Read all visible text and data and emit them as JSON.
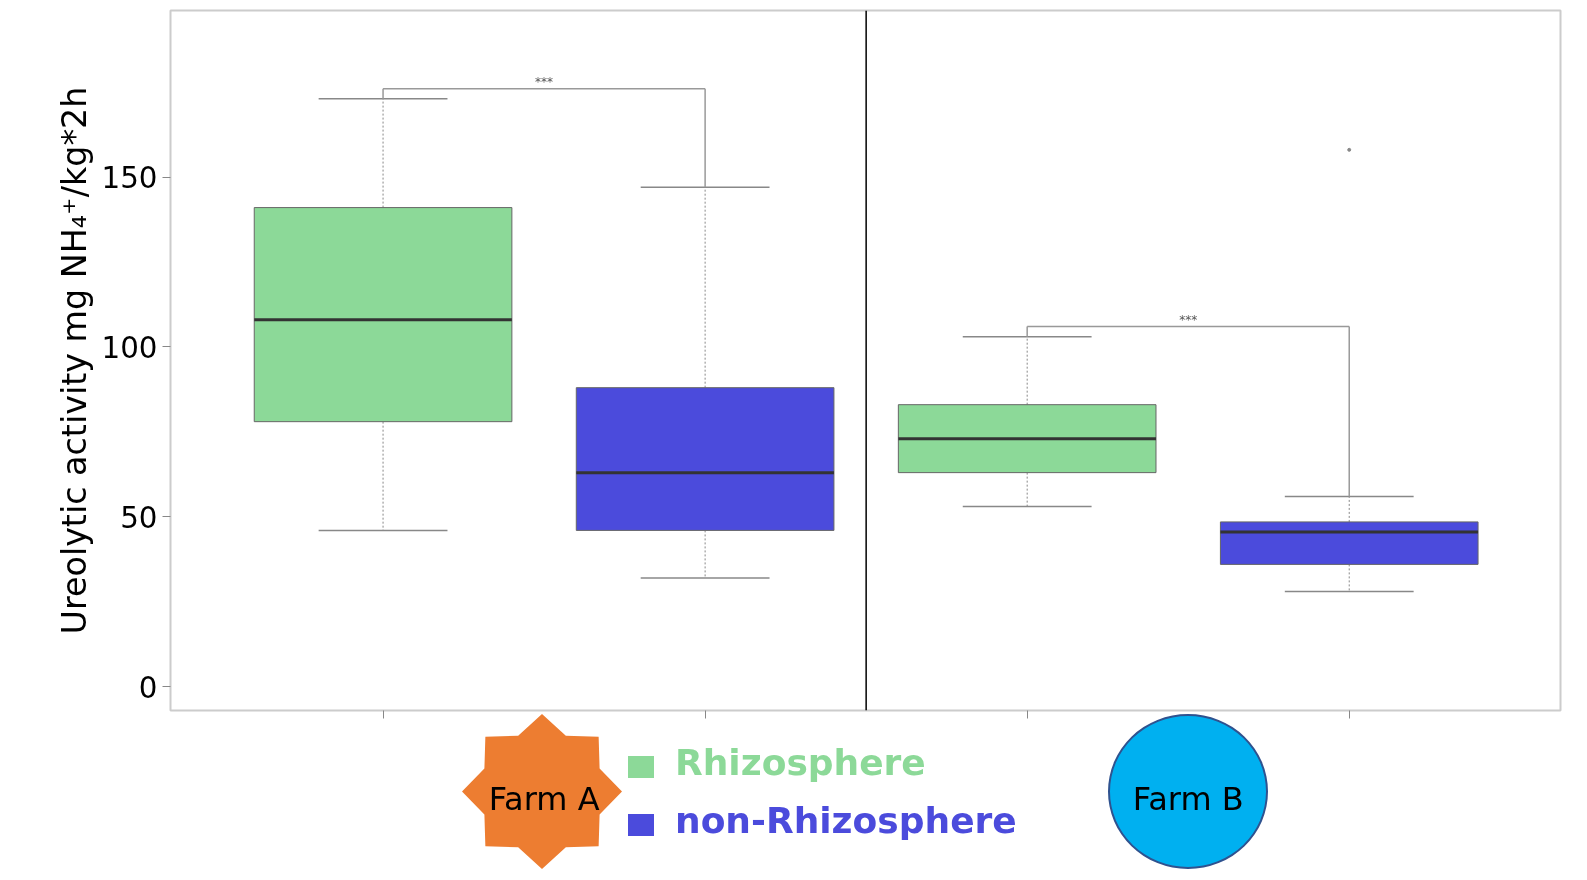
{
  "chart_data": {
    "type": "box",
    "ylabel": "Ureolytic activity mg NH₄⁺/kg*2h",
    "categories": [
      "Farm A",
      "Farm B"
    ],
    "series": [
      {
        "name": "Rhizosphere",
        "color": "#8cd998",
        "boxes": [
          {
            "low": 46,
            "q1": 78,
            "median": 108,
            "q3": 141,
            "high": 173
          },
          {
            "low": 53,
            "q1": 63,
            "median": 73,
            "q3": 83,
            "high": 103
          }
        ]
      },
      {
        "name": "non-Rhizosphere",
        "color": "#4b4bdc",
        "boxes": [
          {
            "low": 32,
            "q1": 46,
            "median": 63,
            "q3": 88,
            "high": 147
          },
          {
            "low": 28,
            "q1": 36,
            "median": 45.5,
            "q3": 48.5,
            "high": 56,
            "outliers": [
              158
            ]
          }
        ]
      }
    ],
    "ylim": [
      -7,
      199
    ],
    "yticks": [
      0,
      50,
      100,
      150
    ],
    "grid": false,
    "legend": "bottom",
    "annotations": [
      "***",
      "***"
    ]
  }
}
